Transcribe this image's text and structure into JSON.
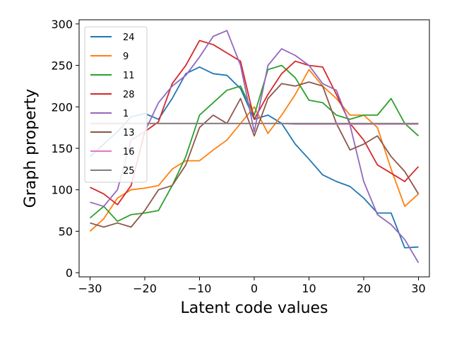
{
  "chart_data": {
    "type": "line",
    "xlabel": "Latent code values",
    "ylabel": "Graph property",
    "xlim": [
      -32,
      32
    ],
    "ylim": [
      -5,
      305
    ],
    "xticks": [
      -30,
      -20,
      -10,
      0,
      10,
      20,
      30
    ],
    "yticks": [
      0,
      50,
      100,
      150,
      200,
      250,
      300
    ],
    "grid": false,
    "legend_position": "top-left",
    "x": [
      -30,
      -27.5,
      -25,
      -22.5,
      -20,
      -17.5,
      -15,
      -12.5,
      -10,
      -7.5,
      -5,
      -2.5,
      0,
      2.5,
      5,
      7.5,
      10,
      12.5,
      15,
      17.5,
      20,
      22.5,
      25,
      27.5,
      30
    ],
    "series": [
      {
        "name": "24",
        "color": "#1f77b4",
        "values": [
          140,
          155,
          170,
          188,
          192,
          185,
          210,
          240,
          248,
          240,
          238,
          222,
          185,
          190,
          180,
          155,
          137,
          118,
          110,
          104,
          90,
          72,
          72,
          30,
          31
        ]
      },
      {
        "name": "9",
        "color": "#ff7f0e",
        "values": [
          50,
          65,
          90,
          100,
          102,
          105,
          125,
          135,
          135,
          148,
          160,
          180,
          200,
          168,
          190,
          215,
          245,
          225,
          210,
          190,
          190,
          175,
          125,
          80,
          95
        ]
      },
      {
        "name": "11",
        "color": "#2ca02c",
        "values": [
          66,
          80,
          62,
          70,
          72,
          75,
          105,
          140,
          190,
          205,
          220,
          225,
          190,
          245,
          250,
          235,
          208,
          205,
          190,
          185,
          190,
          190,
          210,
          180,
          165
        ]
      },
      {
        "name": "28",
        "color": "#d62728",
        "values": [
          103,
          95,
          82,
          105,
          170,
          182,
          228,
          250,
          280,
          275,
          265,
          255,
          185,
          215,
          240,
          255,
          250,
          248,
          215,
          180,
          160,
          130,
          120,
          110,
          128
        ]
      },
      {
        "name": "1",
        "color": "#9467bd",
        "values": [
          85,
          80,
          100,
          160,
          170,
          205,
          225,
          238,
          260,
          285,
          292,
          250,
          170,
          250,
          270,
          262,
          250,
          228,
          220,
          178,
          110,
          70,
          58,
          40,
          12
        ]
      },
      {
        "name": "13",
        "color": "#8c564b",
        "values": [
          60,
          55,
          60,
          55,
          75,
          100,
          105,
          130,
          175,
          190,
          180,
          210,
          165,
          210,
          228,
          225,
          230,
          225,
          180,
          148,
          155,
          165,
          140,
          122,
          95
        ]
      },
      {
        "name": "16",
        "color": "#e377c2",
        "values": [
          180,
          180,
          180,
          180,
          180,
          180,
          180,
          180,
          180,
          180,
          180,
          180,
          180,
          180,
          180,
          179,
          179,
          179,
          179,
          179,
          179,
          179,
          179,
          179,
          179
        ]
      },
      {
        "name": "25",
        "color": "#7f7f7f",
        "values": [
          180,
          180,
          180,
          180,
          180,
          180,
          180,
          180,
          180,
          180,
          180,
          180,
          180,
          180,
          180,
          180,
          180,
          180,
          180,
          180,
          180,
          180,
          180,
          180,
          180
        ]
      }
    ]
  }
}
